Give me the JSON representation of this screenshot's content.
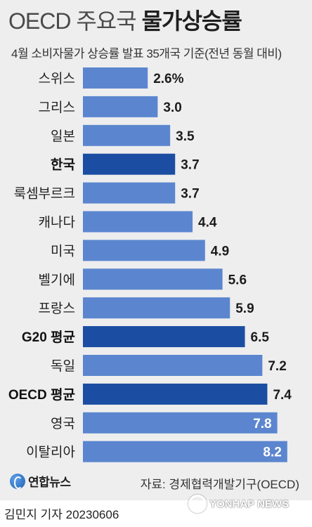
{
  "header": {
    "title_light": "OECD 주요국",
    "title_bold": "물가상승률",
    "subtitle": "4월 소비자물가 상승률 발표 35개국 기준(전년 동월 대비)"
  },
  "chart_data": {
    "type": "bar",
    "orientation": "horizontal",
    "title": "OECD 주요국 물가상승률",
    "subtitle": "4월 소비자물가 상승률 발표 35개국 기준(전년 동월 대비)",
    "categories": [
      "스위스",
      "그리스",
      "일본",
      "한국",
      "룩셈부르크",
      "캐나다",
      "미국",
      "벨기에",
      "프랑스",
      "G20 평균",
      "독일",
      "OECD 평균",
      "영국",
      "이탈리아"
    ],
    "values": [
      2.6,
      3.0,
      3.5,
      3.7,
      3.7,
      4.4,
      4.9,
      5.6,
      5.9,
      6.5,
      7.2,
      7.4,
      7.8,
      8.2
    ],
    "value_labels": [
      "2.6%",
      "3.0",
      "3.5",
      "3.7",
      "3.7",
      "4.4",
      "4.9",
      "5.6",
      "5.9",
      "6.5",
      "7.2",
      "7.4",
      "7.8",
      "8.2"
    ],
    "highlighted": [
      "한국",
      "G20 평균",
      "OECD 평균"
    ],
    "value_labels_inside": [
      "영국",
      "이탈리아"
    ],
    "xlim": [
      0,
      8.6
    ],
    "grid": false,
    "legend": "none",
    "colors": {
      "bar": "#5b86cf",
      "bar_highlight": "#1b4ea2",
      "background": "#eeeeee"
    }
  },
  "footer": {
    "logo_text": "연합뉴스",
    "source": "자료: 경제협력개발기구(OECD)",
    "byline": "김민지 기자  20230606",
    "watermark": "YONHAP NEWS"
  },
  "icons": {
    "logo": "yonhap-logo-icon",
    "watermark": "yonhap-watermark-icon"
  }
}
